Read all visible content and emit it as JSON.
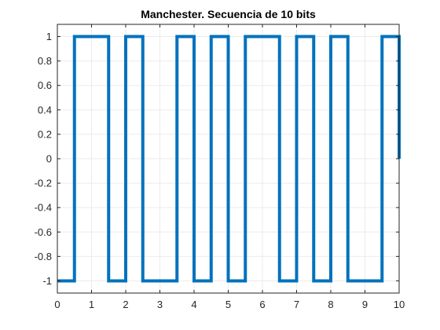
{
  "chart_data": {
    "type": "line",
    "title": "Manchester. Secuencia de 10 bits",
    "xlabel": "",
    "ylabel": "",
    "xlim": [
      0,
      10
    ],
    "ylim": [
      -1.1,
      1.1
    ],
    "grid": true,
    "box": true,
    "x_ticks": [
      0,
      1,
      2,
      3,
      4,
      5,
      6,
      7,
      8,
      9,
      10
    ],
    "x_tick_labels": [
      "0",
      "1",
      "2",
      "3",
      "4",
      "5",
      "6",
      "7",
      "8",
      "9",
      "10"
    ],
    "y_ticks": [
      1,
      0.8,
      0.6,
      0.4,
      0.2,
      0,
      -0.2,
      -0.4,
      -0.6,
      -0.8,
      -1
    ],
    "y_tick_labels": [
      "1",
      "0.8",
      "0.6",
      "0.4",
      "0.2",
      "0",
      "-0.2",
      "-0.4",
      "-0.6",
      "-0.8",
      "-1"
    ],
    "series": [
      {
        "x": [
          0,
          0.5,
          0.5,
          1.5,
          1.5,
          2,
          2,
          2.5,
          2.5,
          3.5,
          3.5,
          4,
          4,
          4.5,
          4.5,
          5,
          5,
          5.5,
          5.5,
          6.5,
          6.5,
          7,
          7,
          7.5,
          7.5,
          8,
          8,
          8.5,
          8.5,
          9.5,
          9.5,
          10,
          10
        ],
        "y": [
          -1,
          -1,
          1,
          1,
          -1,
          -1,
          1,
          1,
          -1,
          -1,
          1,
          1,
          -1,
          -1,
          1,
          1,
          -1,
          -1,
          1,
          1,
          -1,
          -1,
          1,
          1,
          -1,
          -1,
          1,
          1,
          -1,
          -1,
          1,
          1,
          0
        ],
        "color": "#0072BD"
      }
    ],
    "colors": {
      "line": "#0072BD",
      "grid": "#ebebeb",
      "axis": "#262626",
      "background": "#ffffff"
    }
  }
}
